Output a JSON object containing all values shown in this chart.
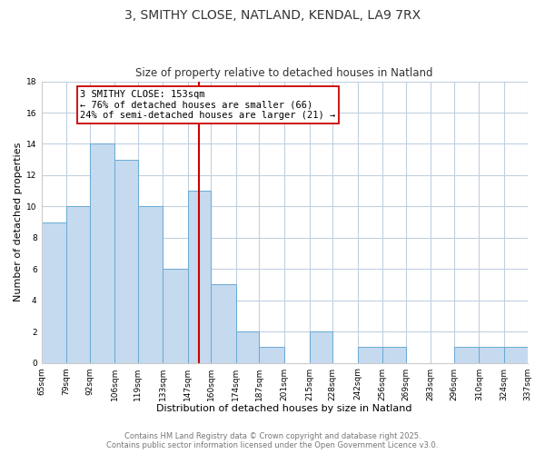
{
  "title": "3, SMITHY CLOSE, NATLAND, KENDAL, LA9 7RX",
  "subtitle": "Size of property relative to detached houses in Natland",
  "xlabel": "Distribution of detached houses by size in Natland",
  "ylabel": "Number of detached properties",
  "bar_edges": [
    65,
    79,
    92,
    106,
    119,
    133,
    147,
    160,
    174,
    187,
    201,
    215,
    228,
    242,
    256,
    269,
    283,
    296,
    310,
    324,
    337
  ],
  "bar_heights": [
    9,
    10,
    14,
    13,
    10,
    6,
    11,
    5,
    2,
    1,
    0,
    2,
    0,
    1,
    1,
    0,
    0,
    1,
    1,
    1
  ],
  "bar_color": "#c5d9ef",
  "bar_edgecolor": "#6aaad4",
  "vline_x": 153,
  "vline_color": "#cc0000",
  "annotation_title": "3 SMITHY CLOSE: 153sqm",
  "annotation_line1": "← 76% of detached houses are smaller (66)",
  "annotation_line2": "24% of semi-detached houses are larger (21) →",
  "annotation_box_color": "#ffffff",
  "annotation_box_edgecolor": "#cc0000",
  "tick_labels": [
    "65sqm",
    "79sqm",
    "92sqm",
    "106sqm",
    "119sqm",
    "133sqm",
    "147sqm",
    "160sqm",
    "174sqm",
    "187sqm",
    "201sqm",
    "215sqm",
    "228sqm",
    "242sqm",
    "256sqm",
    "269sqm",
    "283sqm",
    "296sqm",
    "310sqm",
    "324sqm",
    "337sqm"
  ],
  "ylim": [
    0,
    18
  ],
  "yticks": [
    0,
    2,
    4,
    6,
    8,
    10,
    12,
    14,
    16,
    18
  ],
  "footer_line1": "Contains HM Land Registry data © Crown copyright and database right 2025.",
  "footer_line2": "Contains public sector information licensed under the Open Government Licence v3.0.",
  "background_color": "#ffffff",
  "grid_color": "#c0d0e0",
  "title_fontsize": 10,
  "subtitle_fontsize": 8.5,
  "axis_label_fontsize": 8,
  "tick_fontsize": 6.5,
  "annotation_fontsize": 7.5,
  "footer_fontsize": 6
}
